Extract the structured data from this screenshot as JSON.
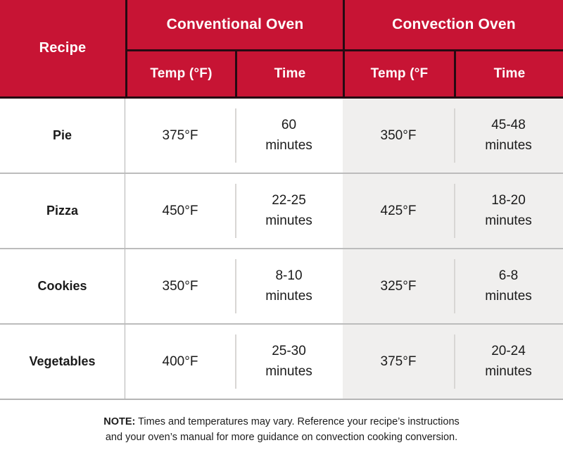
{
  "header": {
    "recipe": "Recipe",
    "conventional": "Conventional Oven",
    "convection": "Convection Oven",
    "conv_temp": "Temp (°F)",
    "conv_time": "Time",
    "convc_temp": "Temp (°F",
    "convc_time": "Time"
  },
  "rows": [
    {
      "recipe": "Pie",
      "conv_temp": "375°F",
      "conv_time": "60\nminutes",
      "convc_temp": "350°F",
      "convc_time": "45-48\nminutes"
    },
    {
      "recipe": "Pizza",
      "conv_temp": "450°F",
      "conv_time": "22-25\nminutes",
      "convc_temp": "425°F",
      "convc_time": "18-20\nminutes"
    },
    {
      "recipe": "Cookies",
      "conv_temp": "350°F",
      "conv_time": "8-10\nminutes",
      "convc_temp": "325°F",
      "convc_time": "6-8\nminutes"
    },
    {
      "recipe": "Vegetables",
      "conv_temp": "400°F",
      "conv_time": "25-30\nminutes",
      "convc_temp": "375°F",
      "convc_time": "20-24\nminutes"
    }
  ],
  "note": {
    "label": "NOTE:",
    "line1": " Times and temperatures may vary. Reference your recipe’s instructions",
    "line2": "and your oven’s manual for more guidance on convection cooking conversion."
  },
  "colors": {
    "header_red": "#c71434",
    "grid_dark": "#260a12",
    "convection_bg": "#f0efee",
    "row_border": "#bcbcbc",
    "inset_divider": "#d8d6d4"
  },
  "chart_data": {
    "type": "table",
    "title": "Conventional Oven vs Convection Oven conversion table",
    "column_groups": [
      "Recipe",
      "Conventional Oven",
      "Convection Oven"
    ],
    "columns": [
      "Recipe",
      "Conventional Oven Temp (°F)",
      "Conventional Oven Time",
      "Convection Oven Temp (°F)",
      "Convection Oven Time"
    ],
    "rows": [
      [
        "Pie",
        "375°F",
        "60 minutes",
        "350°F",
        "45-48 minutes"
      ],
      [
        "Pizza",
        "450°F",
        "22-25 minutes",
        "425°F",
        "18-20 minutes"
      ],
      [
        "Cookies",
        "350°F",
        "8-10 minutes",
        "325°F",
        "6-8 minutes"
      ],
      [
        "Vegetables",
        "400°F",
        "25-30 minutes",
        "375°F",
        "20-24 minutes"
      ]
    ],
    "note": "NOTE: Times and temperatures may vary. Reference your recipe’s instructions and your oven’s manual for more guidance on convection cooking conversion."
  }
}
